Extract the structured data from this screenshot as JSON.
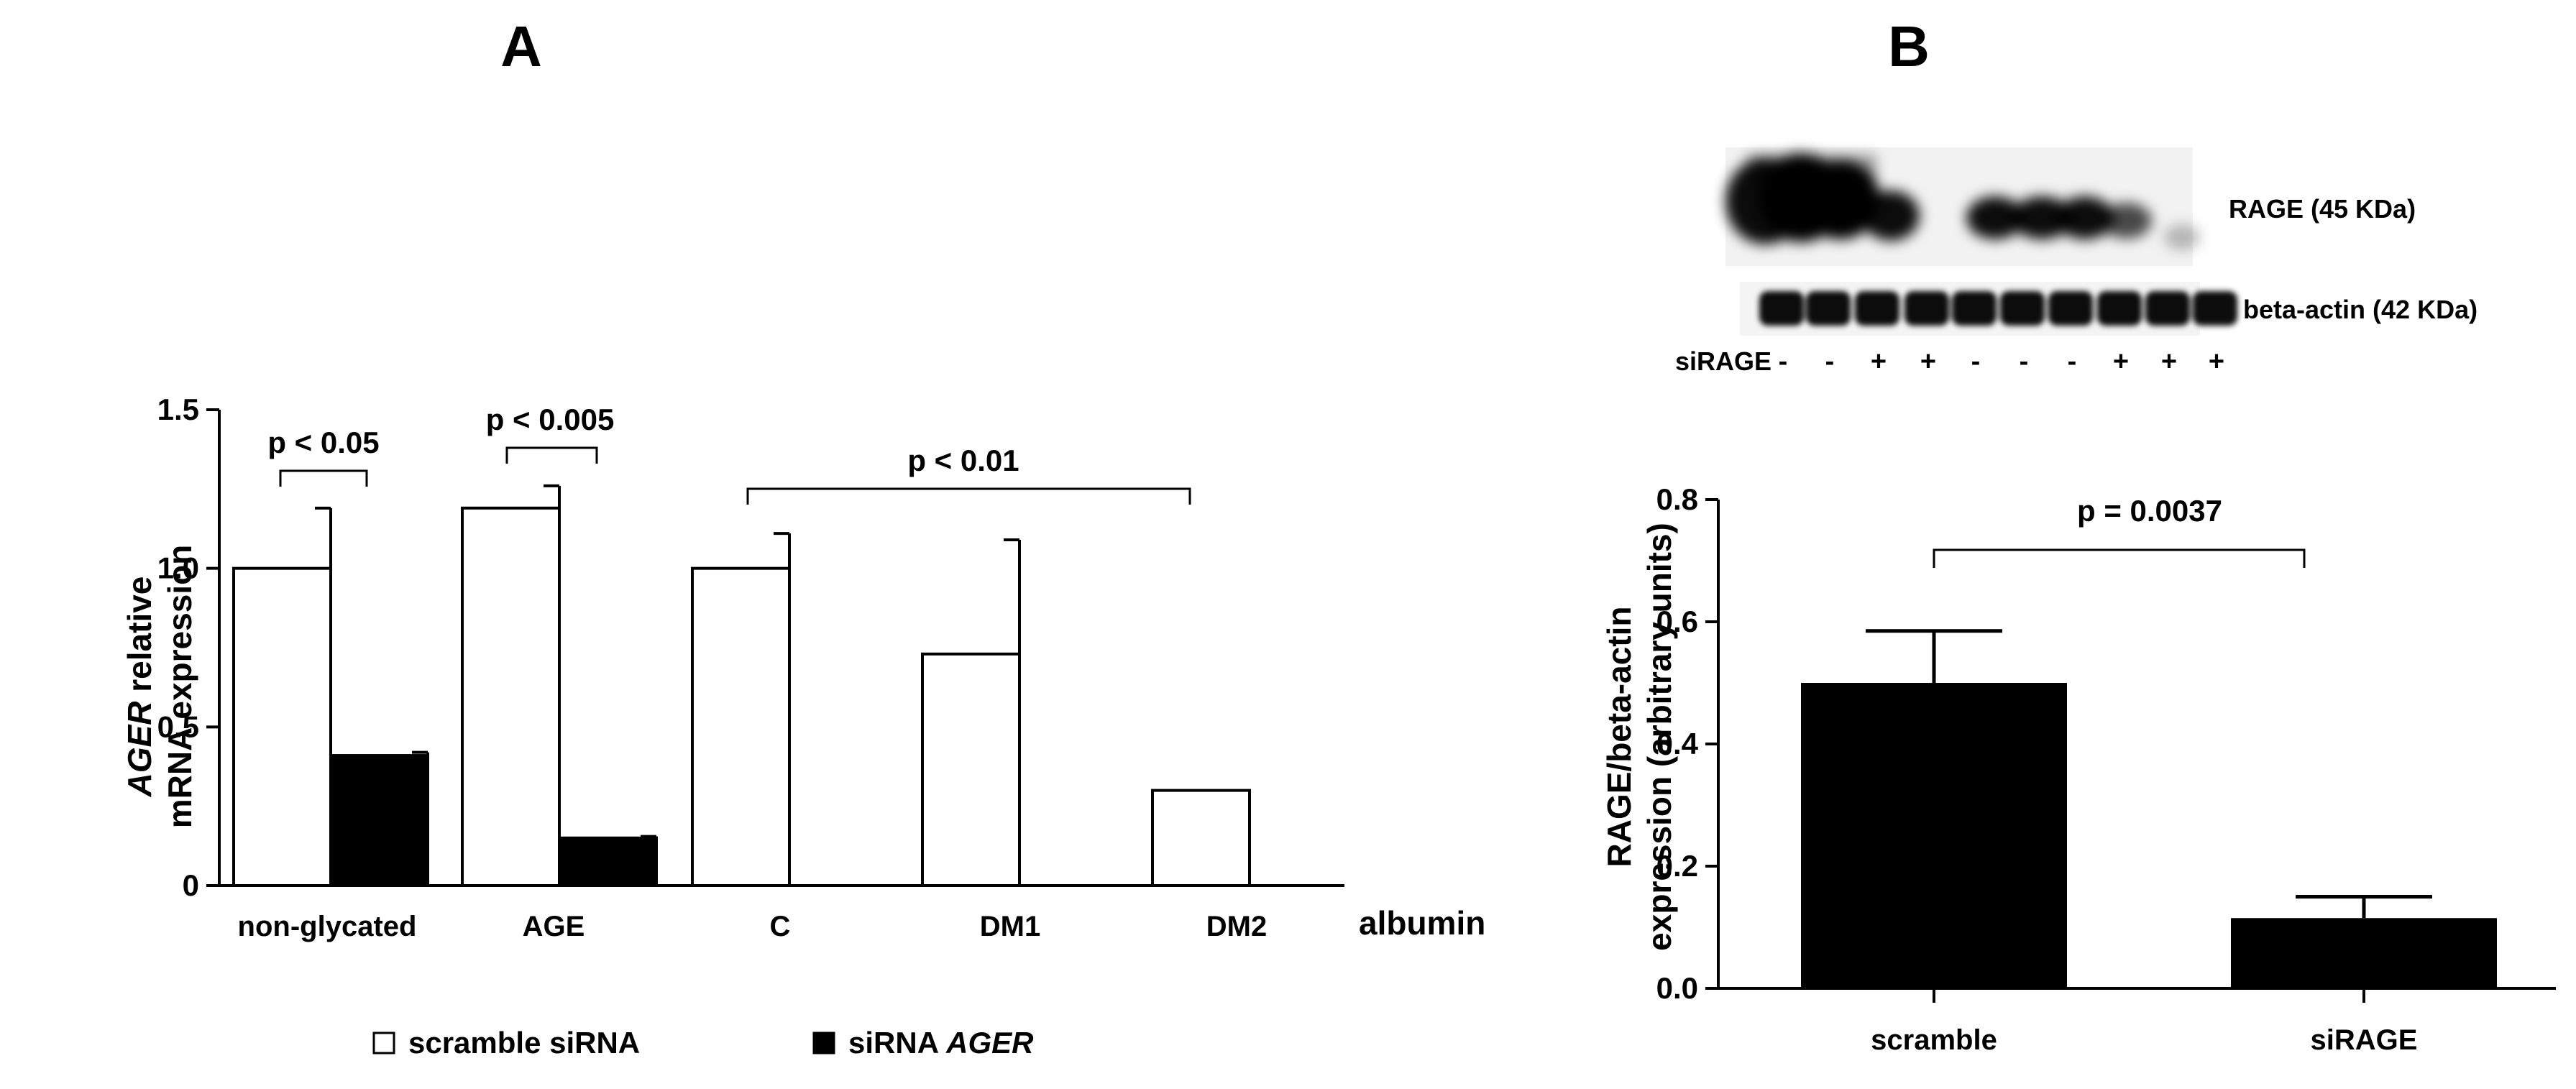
{
  "panels": {
    "a": "A",
    "b": "B"
  },
  "chart_data": [
    {
      "type": "bar",
      "panel": "A",
      "ylabel_italic": "AGER",
      "ylabel_rest": " relative",
      "ylabel_line2": "mRNA expression",
      "xlabel": "albumin",
      "categories": [
        "non-glycated",
        "AGE",
        "C",
        "DM1",
        "DM2"
      ],
      "yticks": [
        "0",
        "0.5",
        "1.0",
        "1.5"
      ],
      "ylim": [
        0,
        1.5
      ],
      "series": [
        {
          "name": "scramble siRNA",
          "color": "#ffffff",
          "values": [
            1.0,
            1.19,
            1.0,
            0.73,
            0.3
          ],
          "errors": [
            0.19,
            0.07,
            0.11,
            0.36,
            0.0
          ]
        },
        {
          "name": "siRNA AGER",
          "color": "#000000",
          "values": [
            0.41,
            0.15,
            null,
            null,
            null
          ],
          "errors": [
            0.01,
            0.005,
            null,
            null,
            null
          ]
        }
      ],
      "legend": {
        "scramble": "scramble siRNA",
        "sirna_prefix": "siRNA ",
        "sirna_italic": "AGER"
      },
      "annotations": [
        "p < 0.05",
        "p < 0.005",
        "p < 0.01"
      ]
    },
    {
      "type": "bar",
      "panel": "B",
      "ylabel_line1": "RAGE/beta-actin",
      "ylabel_line2": "expression (arbitrary units)",
      "categories": [
        "scramble",
        "siRAGE"
      ],
      "yticks": [
        "0.0",
        "0.2",
        "0.4",
        "0.6",
        "0.8"
      ],
      "ylim": [
        0,
        0.8
      ],
      "values": [
        0.5,
        0.115
      ],
      "errors": [
        0.085,
        0.035
      ],
      "color": "#000000",
      "annotation": "p = 0.0037"
    }
  ],
  "blot": {
    "rage_label": "RAGE (45 KDa)",
    "actin_label": "beta-actin (42 KDa)",
    "sirage_label": "siRAGE",
    "signs": [
      "-",
      "-",
      "+",
      "+",
      "-",
      "-",
      "-",
      "+",
      "+",
      "+"
    ]
  }
}
